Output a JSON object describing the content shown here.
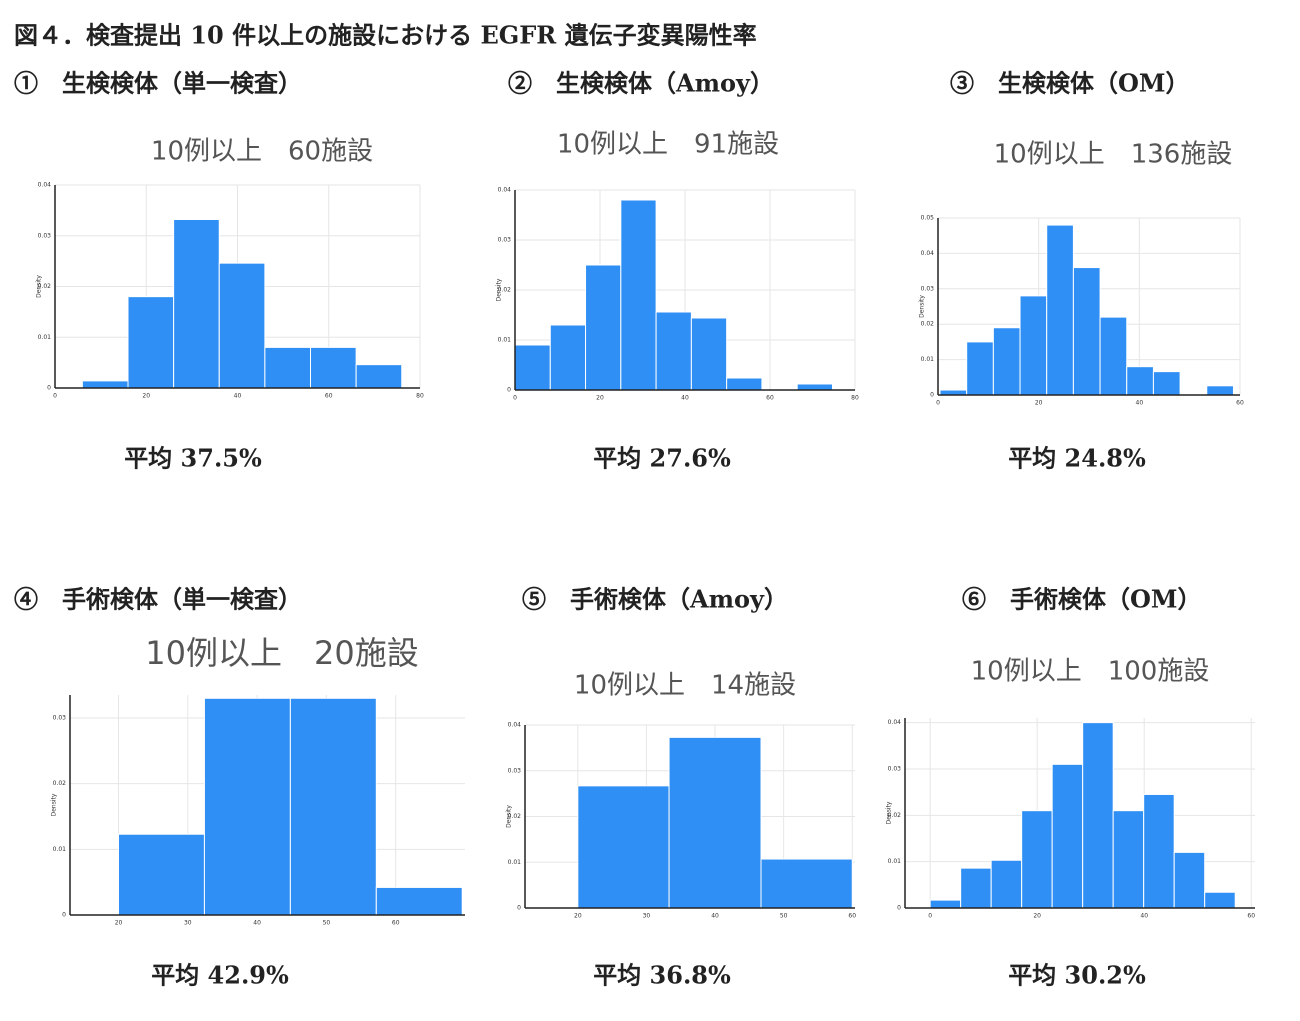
{
  "title": "図４．検査提出 10 件以上の施設における EGFR 遺伝子変異陽性率",
  "chart_data": [
    {
      "type": "histogram",
      "label": "①　生検検体（単一検査）",
      "subtitle": "10例以上　60施設",
      "annotation": "平均 37.5%",
      "ylabel": "Density",
      "color": "#2f8ff5",
      "grid": true,
      "bins": [
        6,
        16,
        26,
        36,
        46,
        56,
        66,
        76
      ],
      "values": [
        0.0014,
        0.018,
        0.0332,
        0.0246,
        0.008,
        0.008,
        0.0046
      ],
      "xlim": [
        0,
        80
      ],
      "xticks": [
        0,
        20,
        40,
        60,
        80
      ],
      "ylim": [
        0,
        0.04
      ],
      "yticks": [
        0,
        0.01,
        0.02,
        0.03,
        0.04
      ]
    },
    {
      "type": "histogram",
      "label": "②　生検検体（Amoy）",
      "subtitle": "10例以上　91施設",
      "annotation": "平均 27.6%",
      "ylabel": "Density",
      "color": "#2f8ff5",
      "grid": true,
      "bins": [
        0,
        8.3,
        16.6,
        24.9,
        33.2,
        41.5,
        49.8,
        58.1,
        66.4,
        74.7
      ],
      "values": [
        0.009,
        0.013,
        0.025,
        0.038,
        0.0156,
        0.0144,
        0.0024,
        0,
        0.0012
      ],
      "xlim": [
        0,
        80
      ],
      "xticks": [
        0,
        20,
        40,
        60,
        80
      ],
      "ylim": [
        0,
        0.04
      ],
      "yticks": [
        0,
        0.01,
        0.02,
        0.03,
        0.04
      ]
    },
    {
      "type": "histogram",
      "label": "③　生検検体（OM）",
      "subtitle": "10例以上　136施設",
      "annotation": "平均 24.8%",
      "ylabel": "Density",
      "color": "#2f8ff5",
      "grid": true,
      "bins": [
        0.4,
        5.7,
        11,
        16.3,
        21.6,
        26.9,
        32.2,
        37.5,
        42.8,
        48.1,
        53.4,
        58.7
      ],
      "values": [
        0.0014,
        0.015,
        0.019,
        0.028,
        0.048,
        0.036,
        0.022,
        0.008,
        0.0066,
        0,
        0.0026
      ],
      "xlim": [
        0,
        60
      ],
      "xticks": [
        0,
        20,
        40,
        60
      ],
      "ylim": [
        0,
        0.05
      ],
      "yticks": [
        0,
        0.01,
        0.02,
        0.03,
        0.04,
        0.05
      ]
    },
    {
      "type": "histogram",
      "label": "④　手術検体（単一検査）",
      "subtitle": "10例以上　20施設",
      "annotation": "平均 42.9%",
      "ylabel": "Density",
      "color": "#2f8ff5",
      "grid": true,
      "bins": [
        20,
        32.4,
        44.8,
        57.2,
        69.6
      ],
      "values": [
        0.0123,
        0.033,
        0.033,
        0.0042
      ],
      "xlim": [
        13,
        70
      ],
      "xticks": [
        20,
        30,
        40,
        50,
        60
      ],
      "ylim": [
        0,
        0.0335
      ],
      "yticks": [
        0,
        0.01,
        0.02,
        0.03
      ]
    },
    {
      "type": "histogram",
      "label": "⑤　手術検体（Amoy）",
      "subtitle": "10例以上　14施設",
      "annotation": "平均 36.8%",
      "ylabel": "Density",
      "color": "#2f8ff5",
      "grid": true,
      "bins": [
        20,
        33.3,
        46.7,
        60
      ],
      "values": [
        0.0267,
        0.0373,
        0.0107
      ],
      "xlim": [
        12.3,
        60.4
      ],
      "xticks": [
        20,
        30,
        40,
        50,
        60
      ],
      "ylim": [
        0,
        0.04
      ],
      "yticks": [
        0,
        0.01,
        0.02,
        0.03,
        0.04
      ]
    },
    {
      "type": "histogram",
      "label": "⑥　手術検体（OM）",
      "subtitle": "10例以上　100施設",
      "annotation": "平均 30.2%",
      "ylabel": "Density",
      "color": "#2f8ff5",
      "grid": true,
      "bins": [
        0,
        5.7,
        11.4,
        17.1,
        22.8,
        28.5,
        34.2,
        39.9,
        45.6,
        51.3,
        57
      ],
      "values": [
        0.0017,
        0.0086,
        0.0103,
        0.021,
        0.031,
        0.04,
        0.021,
        0.0245,
        0.012,
        0.0034
      ],
      "xlim": [
        -4.7,
        60.7
      ],
      "xticks": [
        0,
        20,
        40,
        60
      ],
      "ylim": [
        0,
        0.041
      ],
      "yticks": [
        0,
        0.01,
        0.02,
        0.03,
        0.04
      ]
    }
  ]
}
